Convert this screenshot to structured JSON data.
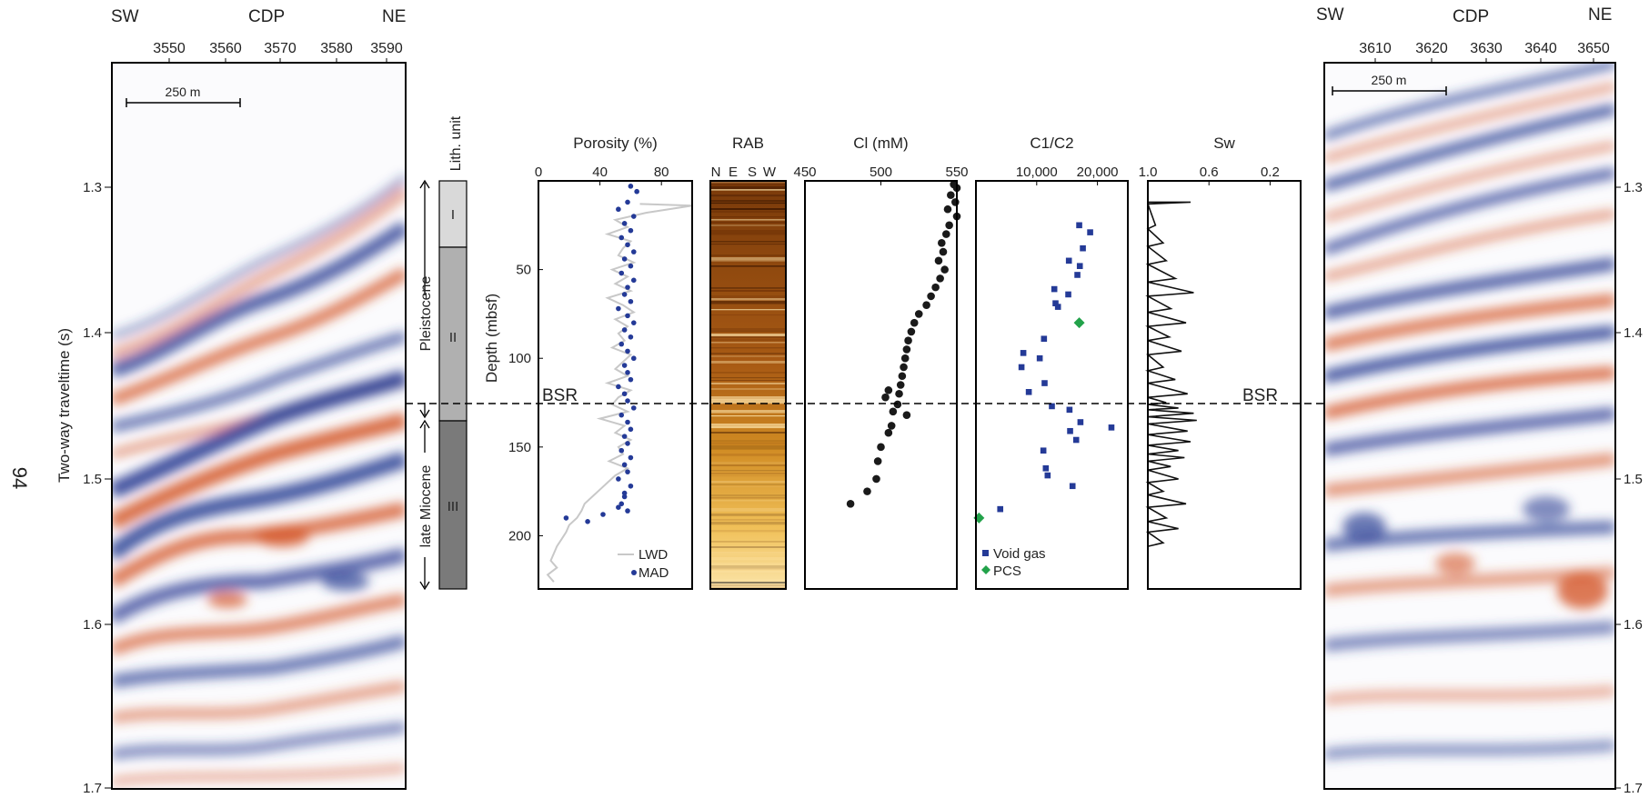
{
  "page": {
    "page_number": "94"
  },
  "seismic_left": {
    "dir_left": "SW",
    "dir_center": "CDP",
    "dir_right": "NE",
    "cdp_ticks": [
      "3550",
      "3560",
      "3570",
      "3580",
      "3590"
    ],
    "scale_label": "250 m",
    "ylabel": "Two-way traveltime (s)",
    "time_ticks": [
      "1.3",
      "1.4",
      "1.5",
      "1.6",
      "1.7"
    ]
  },
  "seismic_right": {
    "dir_left": "SW",
    "dir_center": "CDP",
    "dir_right": "NE",
    "cdp_ticks": [
      "3610",
      "3620",
      "3630",
      "3640",
      "3650"
    ],
    "scale_label": "250 m",
    "time_ticks": [
      "1.3",
      "1.4",
      "1.5",
      "1.6",
      "1.7"
    ]
  },
  "lithology": {
    "title": "Lith. unit",
    "units": [
      "I",
      "II",
      "III"
    ],
    "epochs": [
      "Pleistocene",
      "late Miocene"
    ]
  },
  "bsr_label": "BSR",
  "depth_label": "Depth (mbsf)",
  "colors": {
    "seismic_blue": "#2b3f94",
    "seismic_orange": "#d4572a",
    "mad": "#243a97",
    "lwd": "#c8c8c8",
    "pcs": "#22a24a"
  },
  "chart_data": [
    {
      "type": "scatter",
      "title": "Porosity (%)",
      "xlim": [
        0,
        100
      ],
      "ylim": [
        0,
        230
      ],
      "xticks": [
        "0",
        "40",
        "80"
      ],
      "yticks": [
        "50",
        "100",
        "150",
        "200"
      ],
      "series": [
        {
          "name": "LWD",
          "style": "line",
          "x": [
            66,
            100,
            70,
            50,
            58,
            45,
            60,
            55,
            52,
            62,
            48,
            58,
            50,
            60,
            45,
            55,
            62,
            50,
            58,
            52,
            56,
            48,
            60,
            55,
            50,
            58,
            45,
            60,
            52,
            48,
            58,
            40,
            56,
            50,
            60,
            52,
            55,
            46,
            58,
            50,
            45,
            40,
            35,
            30,
            28,
            25,
            20,
            18,
            15,
            12,
            10,
            8,
            12,
            6,
            10
          ],
          "y": [
            13,
            14,
            18,
            22,
            26,
            30,
            34,
            38,
            42,
            46,
            50,
            54,
            58,
            62,
            66,
            70,
            74,
            78,
            82,
            86,
            90,
            94,
            98,
            102,
            106,
            110,
            114,
            118,
            122,
            126,
            130,
            134,
            138,
            142,
            146,
            150,
            154,
            158,
            162,
            166,
            170,
            174,
            178,
            182,
            186,
            190,
            194,
            198,
            202,
            206,
            210,
            214,
            218,
            222,
            226
          ]
        },
        {
          "name": "MAD",
          "style": "points",
          "x": [
            60,
            64,
            58,
            52,
            62,
            56,
            60,
            54,
            58,
            62,
            56,
            60,
            54,
            62,
            58,
            56,
            60,
            52,
            58,
            62,
            56,
            60,
            54,
            58,
            62,
            56,
            58,
            60,
            52,
            56,
            58,
            62,
            54,
            58,
            60,
            56,
            58,
            54,
            60,
            56,
            58,
            52,
            60,
            56,
            54,
            58,
            56,
            52,
            18,
            42,
            32
          ],
          "y": [
            3,
            6,
            12,
            16,
            20,
            24,
            28,
            32,
            36,
            40,
            44,
            48,
            52,
            56,
            60,
            64,
            68,
            72,
            76,
            80,
            84,
            88,
            92,
            96,
            100,
            104,
            108,
            112,
            116,
            120,
            124,
            128,
            132,
            136,
            140,
            144,
            148,
            152,
            156,
            160,
            164,
            168,
            172,
            178,
            182,
            186,
            176,
            184,
            190,
            188,
            192
          ]
        }
      ]
    },
    {
      "type": "heatmap",
      "title": "RAB",
      "xticks": [
        "N",
        "E",
        "S",
        "W"
      ],
      "ylim": [
        0,
        230
      ],
      "image": "resistivity-at-bit borehole image"
    },
    {
      "type": "scatter",
      "title": "Cl (mM)",
      "xlim": [
        450,
        550
      ],
      "ylim": [
        0,
        230
      ],
      "xticks": [
        "450",
        "500",
        "550"
      ],
      "series": [
        {
          "name": "Cl",
          "x": [
            548,
            550,
            546,
            549,
            544,
            550,
            545,
            543,
            540,
            541,
            538,
            542,
            539,
            536,
            533,
            530,
            525,
            522,
            520,
            518,
            517,
            516,
            515,
            514,
            513,
            512,
            505,
            503,
            511,
            508,
            517,
            507,
            505,
            500,
            498,
            497,
            491,
            480
          ],
          "y": [
            2,
            4,
            8,
            12,
            16,
            20,
            25,
            30,
            35,
            40,
            45,
            50,
            55,
            60,
            65,
            70,
            75,
            80,
            85,
            90,
            95,
            100,
            105,
            110,
            115,
            120,
            118,
            122,
            126,
            130,
            132,
            138,
            142,
            150,
            158,
            168,
            175,
            182
          ]
        }
      ]
    },
    {
      "type": "scatter",
      "title": "C1/C2",
      "xlim": [
        0,
        25000
      ],
      "ylim": [
        0,
        230
      ],
      "xticks": [
        "10,000",
        "20,000"
      ],
      "series": [
        {
          "name": "Void gas",
          "x": [
            17000,
            18800,
            17600,
            15300,
            17100,
            16700,
            12900,
            15200,
            13100,
            13500,
            11200,
            7800,
            7500,
            10500,
            11300,
            8700,
            12500,
            15400,
            22300,
            17200,
            11100,
            15500,
            11500,
            16500,
            11800,
            15900,
            4000
          ],
          "y": [
            25,
            29,
            38,
            45,
            48,
            53,
            61,
            64,
            69,
            71,
            89,
            97,
            105,
            100,
            114,
            119,
            127,
            129,
            139,
            136,
            152,
            141,
            162,
            146,
            166,
            172,
            185
          ]
        },
        {
          "name": "PCS",
          "x": [
            17000,
            500
          ],
          "y": [
            80,
            190
          ]
        }
      ]
    },
    {
      "type": "line",
      "title": "Sw",
      "xlim": [
        1.0,
        0.0
      ],
      "ylim": [
        0,
        230
      ],
      "xticks": [
        "1.0",
        "0.6",
        "0.2"
      ],
      "series": [
        {
          "name": "Sw",
          "x": [
            1.0,
            0.72,
            1.0,
            0.95,
            1.0,
            0.9,
            1.0,
            0.88,
            1.0,
            0.82,
            1.0,
            0.7,
            1.0,
            0.85,
            1.0,
            0.75,
            1.0,
            0.86,
            1.0,
            0.78,
            1.0,
            0.9,
            1.0,
            0.82,
            1.0,
            0.74,
            1.0,
            0.88,
            1.0,
            0.8,
            1.0,
            0.7,
            1.0,
            0.68,
            1.0,
            0.74,
            1.0,
            0.72,
            1.0,
            0.8,
            1.0,
            0.76,
            1.0,
            0.85,
            1.0,
            0.8,
            1.0,
            0.9,
            1.0,
            0.75,
            1.0,
            0.88,
            1.0,
            0.8,
            1.0,
            0.9,
            1.0
          ],
          "y": [
            12,
            12,
            13,
            25,
            27,
            35,
            37,
            45,
            47,
            55,
            57,
            63,
            65,
            72,
            74,
            80,
            82,
            88,
            90,
            96,
            98,
            105,
            107,
            112,
            114,
            120,
            122,
            125,
            126,
            128,
            129,
            131,
            133,
            135,
            137,
            141,
            143,
            147,
            149,
            152,
            154,
            156,
            158,
            161,
            163,
            168,
            170,
            175,
            177,
            182,
            184,
            190,
            192,
            196,
            198,
            204,
            206
          ]
        }
      ]
    }
  ]
}
